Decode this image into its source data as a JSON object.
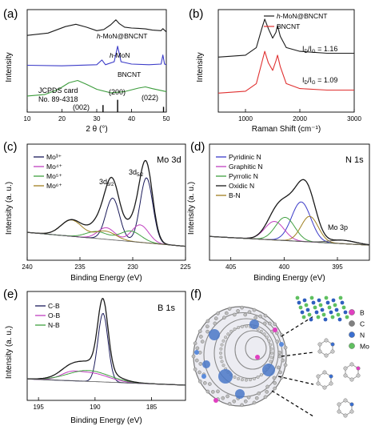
{
  "panels": {
    "a": {
      "letter": "(a)"
    },
    "b": {
      "letter": "(b)"
    },
    "c": {
      "letter": "(c)"
    },
    "d": {
      "letter": "(d)"
    },
    "e": {
      "letter": "(e)"
    },
    "f": {
      "letter": "(f)"
    }
  },
  "chart_data": [
    {
      "id": "a",
      "type": "line",
      "xlabel": "2 θ (°)",
      "ylabel": "Intensity",
      "xlim": [
        10,
        50
      ],
      "xticks": [
        "10",
        "20",
        "30",
        "40",
        "50"
      ],
      "series": [
        {
          "name": "h-MoN@BNCNT",
          "color": "#1a1a1a",
          "points": [
            [
              10,
              2.62
            ],
            [
              16,
              2.7
            ],
            [
              21,
              2.92
            ],
            [
              24,
              3.0
            ],
            [
              27,
              2.9
            ],
            [
              30,
              2.78
            ],
            [
              32,
              2.82
            ],
            [
              34,
              2.98
            ],
            [
              35.5,
              3.15
            ],
            [
              36.5,
              3.02
            ],
            [
              38,
              2.9
            ],
            [
              40,
              2.87
            ],
            [
              42,
              2.86
            ],
            [
              44,
              2.84
            ],
            [
              46,
              2.8
            ],
            [
              48.5,
              2.78
            ],
            [
              49,
              2.85
            ],
            [
              50,
              2.74
            ]
          ]
        },
        {
          "name": "h-MoN",
          "color": "#3b3bc8",
          "points": [
            [
              10,
              1.6
            ],
            [
              20,
              1.58
            ],
            [
              30,
              1.62
            ],
            [
              31.5,
              1.78
            ],
            [
              32.5,
              1.62
            ],
            [
              35,
              1.72
            ],
            [
              36,
              2.25
            ],
            [
              37,
              1.72
            ],
            [
              40,
              1.64
            ],
            [
              45,
              1.62
            ],
            [
              48.5,
              1.64
            ],
            [
              49,
              1.95
            ],
            [
              49.5,
              1.64
            ],
            [
              50,
              1.62
            ]
          ]
        },
        {
          "name": "BNCNT",
          "color": "#3c9c3c",
          "points": [
            [
              10,
              0.55
            ],
            [
              15,
              0.6
            ],
            [
              19,
              0.78
            ],
            [
              22,
              1.0
            ],
            [
              24.5,
              1.08
            ],
            [
              27,
              0.95
            ],
            [
              30,
              0.78
            ],
            [
              34,
              0.66
            ],
            [
              38,
              0.7
            ],
            [
              42,
              0.82
            ],
            [
              44,
              0.86
            ],
            [
              46,
              0.8
            ],
            [
              50,
              0.7
            ]
          ]
        }
      ],
      "annotations": [
        "JCPDS card",
        "No. 89-4318",
        "(002)",
        "(200)",
        "(022)"
      ],
      "reference_lines": [
        {
          "label": "(002)",
          "x": 31.8,
          "h": 0.2
        },
        {
          "label": "(200)",
          "x": 36.0,
          "h": 0.35
        },
        {
          "label": "(022)",
          "x": 49.2,
          "h": 0.15
        }
      ]
    },
    {
      "id": "b",
      "type": "line",
      "xlabel": "Raman Shift (cm⁻¹)",
      "ylabel": "Intensity",
      "xlim": [
        500,
        3000
      ],
      "xticks": [
        "1000",
        "2000",
        "3000"
      ],
      "series": [
        {
          "name": "h-MoN@BNCNT",
          "color": "#1a1a1a",
          "points": [
            [
              500,
              2.45
            ],
            [
              1000,
              2.5
            ],
            [
              1200,
              2.7
            ],
            [
              1300,
              3.2
            ],
            [
              1355,
              3.45
            ],
            [
              1420,
              3.2
            ],
            [
              1500,
              2.95
            ],
            [
              1560,
              3.1
            ],
            [
              1590,
              3.28
            ],
            [
              1640,
              3.0
            ],
            [
              1750,
              2.7
            ],
            [
              2000,
              2.6
            ],
            [
              2500,
              2.55
            ],
            [
              3000,
              2.55
            ]
          ]
        },
        {
          "name": "BNCNT",
          "color": "#e03030",
          "points": [
            [
              500,
              1.5
            ],
            [
              1000,
              1.55
            ],
            [
              1200,
              1.75
            ],
            [
              1300,
              2.3
            ],
            [
              1355,
              2.6
            ],
            [
              1420,
              2.3
            ],
            [
              1500,
              2.1
            ],
            [
              1560,
              2.35
            ],
            [
              1590,
              2.5
            ],
            [
              1640,
              2.2
            ],
            [
              1750,
              1.75
            ],
            [
              2000,
              1.62
            ],
            [
              2500,
              1.58
            ],
            [
              3000,
              1.58
            ]
          ]
        }
      ],
      "ratios": [
        "1.16",
        "1.09"
      ],
      "ratio_label_main": "I",
      "ratio_sub_d": "D",
      "ratio_sub_g": "G",
      "ratio_slash": "/",
      "ratio_eq": " = "
    },
    {
      "id": "c",
      "type": "line",
      "title": "Mo 3d",
      "xlabel": "Binding Energy (eV)",
      "ylabel": "Intensity (a. u.)",
      "xlim": [
        240,
        225
      ],
      "xticks": [
        "240",
        "235",
        "230",
        "225"
      ],
      "series_legend": [
        {
          "name": "Mo³⁺",
          "color": "#1a1a5a"
        },
        {
          "name": "Mo⁴⁺",
          "color": "#c040c0"
        },
        {
          "name": "Mo⁵⁺",
          "color": "#40a040"
        },
        {
          "name": "Mo⁶⁺",
          "color": "#a08020"
        }
      ],
      "peak_labels": [
        "3d3/2",
        "3d5/2"
      ]
    },
    {
      "id": "d",
      "type": "line",
      "title": "N 1s",
      "xlabel": "Binding Energy (eV)",
      "ylabel": "Intensity (a. u.)",
      "xlim": [
        407,
        392
      ],
      "xticks": [
        "405",
        "400",
        "395"
      ],
      "series_legend": [
        {
          "name": "Pyridinic N",
          "color": "#3b3bc8"
        },
        {
          "name": "Graphitic N",
          "color": "#c040c0"
        },
        {
          "name": "Pyrrolic N",
          "color": "#40a040"
        },
        {
          "name": "Oxidic N",
          "color": "#1a1a1a"
        },
        {
          "name": "B-N",
          "color": "#a08020"
        }
      ],
      "annotation": "Mo 3p"
    },
    {
      "id": "e",
      "type": "line",
      "title": "B 1s",
      "xlabel": "Binding Energy (eV)",
      "ylabel": "Intensity (a. u.)",
      "xlim": [
        196,
        182
      ],
      "xticks": [
        "195",
        "190",
        "185"
      ],
      "series_legend": [
        {
          "name": "C-B",
          "color": "#1a1a5a"
        },
        {
          "name": "O-B",
          "color": "#c040c0"
        },
        {
          "name": "N-B",
          "color": "#40a040"
        }
      ]
    }
  ],
  "schematic": {
    "legend": [
      {
        "name": "B",
        "color": "#e040c0"
      },
      {
        "name": "C",
        "color": "#808080"
      },
      {
        "name": "N",
        "color": "#3b6fd0"
      },
      {
        "name": "Mo",
        "color": "#60c060"
      }
    ]
  }
}
